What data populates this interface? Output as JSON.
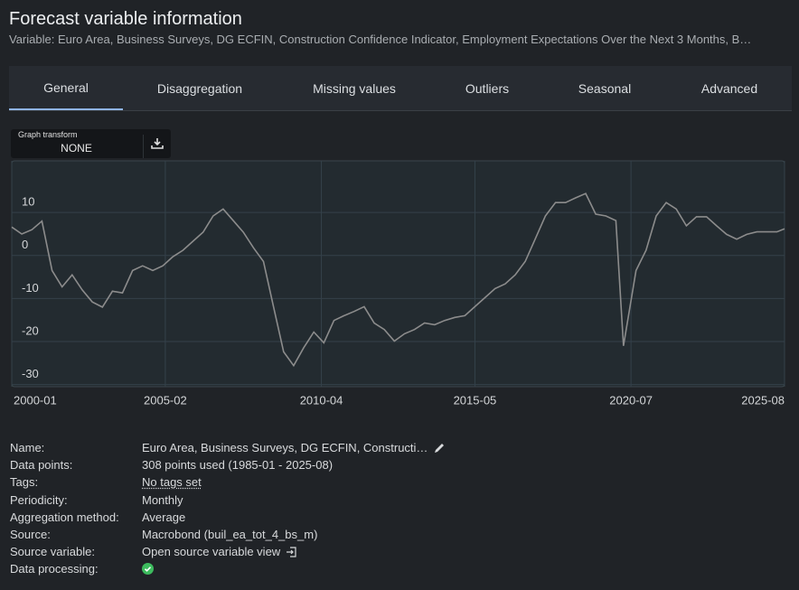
{
  "header": {
    "title": "Forecast variable information",
    "subtitle": "Variable: Euro Area, Business Surveys, DG ECFIN, Construction Confidence Indicator, Employment Expectations Over the Next 3 Months, B…"
  },
  "tabs": [
    {
      "label": "General",
      "active": true
    },
    {
      "label": "Disaggregation"
    },
    {
      "label": "Missing values"
    },
    {
      "label": "Outliers"
    },
    {
      "label": "Seasonal"
    },
    {
      "label": "Advanced"
    }
  ],
  "graph_transform": {
    "label": "Graph transform",
    "value": "NONE"
  },
  "chart_data": {
    "type": "line",
    "x": [
      "2000-01",
      "2000-05",
      "2000-09",
      "2001-01",
      "2001-05",
      "2001-09",
      "2002-01",
      "2002-05",
      "2002-09",
      "2003-01",
      "2003-05",
      "2003-09",
      "2004-01",
      "2004-05",
      "2004-09",
      "2005-01",
      "2005-05",
      "2005-09",
      "2006-01",
      "2006-05",
      "2006-09",
      "2007-01",
      "2007-05",
      "2007-09",
      "2008-01",
      "2008-05",
      "2008-09",
      "2009-01",
      "2009-05",
      "2009-09",
      "2010-01",
      "2010-05",
      "2010-09",
      "2011-01",
      "2011-05",
      "2011-09",
      "2012-01",
      "2012-05",
      "2012-09",
      "2013-01",
      "2013-05",
      "2013-09",
      "2014-01",
      "2014-05",
      "2014-09",
      "2015-01",
      "2015-05",
      "2015-09",
      "2016-01",
      "2016-05",
      "2016-09",
      "2017-01",
      "2017-05",
      "2017-09",
      "2018-01",
      "2018-05",
      "2018-09",
      "2019-01",
      "2019-05",
      "2019-09",
      "2020-01",
      "2020-04",
      "2020-09",
      "2021-01",
      "2021-05",
      "2021-09",
      "2022-01",
      "2022-05",
      "2022-09",
      "2023-01",
      "2023-05",
      "2023-09",
      "2024-01",
      "2024-05",
      "2024-09",
      "2025-01",
      "2025-05",
      "2025-08"
    ],
    "series": [
      {
        "color": "#8c8c8c",
        "values": [
          6.6,
          5,
          6,
          8,
          -3.5,
          -7.3,
          -4.5,
          -8,
          -10.8,
          -12,
          -8.3,
          -8.7,
          -3.5,
          -2.4,
          -3.5,
          -2.4,
          -0.3,
          1.2,
          3.3,
          5.4,
          9.2,
          10.8,
          8.1,
          5.4,
          1.8,
          -1.4,
          -11.9,
          -22.4,
          -25.6,
          -21.4,
          -17.8,
          -20.3,
          -15.1,
          -14,
          -13,
          -11.9,
          -15.7,
          -17.2,
          -19.9,
          -18.2,
          -17.2,
          -15.7,
          -16.1,
          -15.1,
          -14.4,
          -14,
          -11.9,
          -9.8,
          -7.7,
          -6.6,
          -4.5,
          -1.4,
          3.9,
          9.2,
          12.3,
          12.3,
          13.4,
          14.4,
          9.6,
          9.2,
          8.1,
          -21,
          -3.5,
          1.2,
          9.2,
          12.3,
          10.8,
          6.9,
          9,
          9,
          6.9,
          4.9,
          3.8,
          4.9,
          5.5,
          5.5,
          5.5,
          6.2
        ]
      }
    ],
    "xlim": [
      "2000-01",
      "2025-08"
    ],
    "xticks": [
      "2000-01",
      "2005-02",
      "2010-04",
      "2015-05",
      "2020-07",
      "2025-08"
    ],
    "ylim": [
      -30.5,
      22
    ],
    "yticks": [
      -30,
      -20,
      -10,
      0,
      10
    ],
    "grid": true
  },
  "details": [
    {
      "label": "Name:",
      "value": "Euro Area, Business Surveys, DG ECFIN, Constructi…"
    },
    {
      "label": "Data points:",
      "value": "308 points used (1985-01 - 2025-08)"
    },
    {
      "label": "Tags:",
      "value": "No tags set"
    },
    {
      "label": "Periodicity:",
      "value": "Monthly"
    },
    {
      "label": "Aggregation method:",
      "value": "Average"
    },
    {
      "label": "Source:",
      "value": "Macrobond (buil_ea_tot_4_bs_m)"
    },
    {
      "label": "Source variable:",
      "value": "Open source variable view"
    },
    {
      "label": "Data processing:"
    }
  ]
}
